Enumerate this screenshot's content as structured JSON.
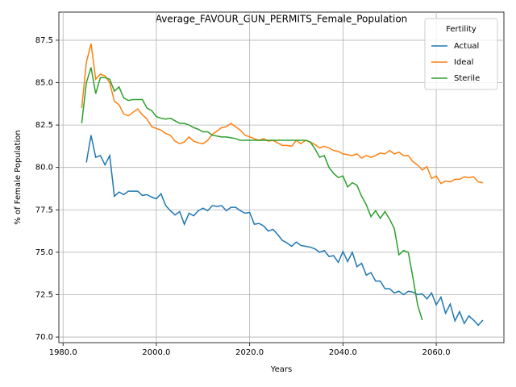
{
  "chart_data": {
    "type": "line",
    "title": "Average_FAVOUR_GUN_PERMITS_Female_Population",
    "x_label": "Years",
    "y_label": "% of Female Population",
    "legend_title": "Fertility",
    "legend_position": "upper right",
    "grid": true,
    "xlim": [
      1979.1,
      2074.5
    ],
    "ylim": [
      69.67,
      89.16
    ],
    "xticks": [
      {
        "value": 1980,
        "label": "1980.0"
      },
      {
        "value": 2000,
        "label": "2000.0"
      },
      {
        "value": 2020,
        "label": "2020.0"
      },
      {
        "value": 2040,
        "label": "2040.0"
      },
      {
        "value": 2060,
        "label": "2060.0"
      }
    ],
    "yticks": [
      {
        "value": 70,
        "label": "70.0"
      },
      72.5,
      {
        "value": 75,
        "label": "75.0"
      },
      77.5,
      {
        "value": 80,
        "label": "80.0"
      },
      82.5,
      {
        "value": 85,
        "label": "85.0"
      },
      87.5
    ],
    "x": [
      1984,
      1985,
      1986,
      1987,
      1988,
      1989,
      1990,
      1991,
      1992,
      1993,
      1994,
      1995,
      1996,
      1997,
      1998,
      1999,
      2000,
      2001,
      2002,
      2003,
      2004,
      2005,
      2006,
      2007,
      2008,
      2009,
      2010,
      2011,
      2012,
      2013,
      2014,
      2015,
      2016,
      2017,
      2018,
      2019,
      2020,
      2021,
      2022,
      2023,
      2024,
      2025,
      2026,
      2027,
      2028,
      2029,
      2030,
      2031,
      2032,
      2033,
      2034,
      2035,
      2036,
      2037,
      2038,
      2039,
      2040,
      2041,
      2042,
      2043,
      2044,
      2045,
      2046,
      2047,
      2048,
      2049,
      2050,
      2051,
      2052,
      2053,
      2054,
      2055,
      2056,
      2057,
      2058,
      2059,
      2060,
      2061,
      2062,
      2063,
      2064,
      2065,
      2066,
      2067,
      2068,
      2069,
      2070
    ],
    "series": [
      {
        "name": "Actual",
        "color": "#1f77b4",
        "values": [
          null,
          80.3,
          81.9,
          80.6,
          80.7,
          80.15,
          80.7,
          78.3,
          78.55,
          78.4,
          78.6,
          78.6,
          78.6,
          78.35,
          78.4,
          78.25,
          78.15,
          78.45,
          77.75,
          77.45,
          77.2,
          77.4,
          76.65,
          77.3,
          77.15,
          77.45,
          77.6,
          77.45,
          77.75,
          77.7,
          77.75,
          77.45,
          77.65,
          77.65,
          77.45,
          77.3,
          77.35,
          76.65,
          76.7,
          76.55,
          76.25,
          76.35,
          76.05,
          75.7,
          75.55,
          75.35,
          75.6,
          75.4,
          75.35,
          75.3,
          75.2,
          75.0,
          75.1,
          74.75,
          74.8,
          74.4,
          75.05,
          74.45,
          75.0,
          74.15,
          74.35,
          73.65,
          73.8,
          73.3,
          73.3,
          72.85,
          72.85,
          72.6,
          72.7,
          72.5,
          72.7,
          72.65,
          72.5,
          72.55,
          72.25,
          72.6,
          71.9,
          72.35,
          71.4,
          71.95,
          70.95,
          71.5,
          70.8,
          71.25,
          71.0,
          70.7,
          71.0
        ]
      },
      {
        "name": "Ideal",
        "color": "#ff7f0e",
        "values": [
          83.5,
          86.2,
          87.3,
          85.2,
          85.5,
          85.4,
          85.0,
          83.9,
          83.7,
          83.15,
          83.05,
          83.25,
          83.45,
          83.1,
          82.85,
          82.4,
          82.3,
          82.2,
          82.0,
          81.9,
          81.55,
          81.4,
          81.5,
          81.8,
          81.55,
          81.45,
          81.4,
          81.6,
          81.95,
          82.15,
          82.35,
          82.4,
          82.6,
          82.4,
          82.2,
          81.9,
          81.8,
          81.7,
          81.6,
          81.7,
          81.55,
          81.6,
          81.45,
          81.3,
          81.3,
          81.25,
          81.6,
          81.4,
          81.6,
          81.5,
          81.35,
          81.15,
          81.25,
          81.15,
          81.0,
          80.95,
          80.8,
          80.75,
          80.7,
          80.8,
          80.55,
          80.7,
          80.6,
          80.7,
          80.85,
          80.8,
          81.0,
          80.8,
          80.9,
          80.7,
          80.7,
          80.35,
          80.15,
          79.85,
          80.05,
          79.35,
          79.5,
          79.05,
          79.2,
          79.15,
          79.3,
          79.3,
          79.45,
          79.4,
          79.45,
          79.15,
          79.1
        ]
      },
      {
        "name": "Sterile",
        "color": "#2ca02c",
        "values": [
          82.6,
          85.0,
          85.9,
          84.35,
          85.3,
          85.3,
          85.2,
          84.5,
          84.75,
          84.1,
          83.95,
          84.0,
          84.0,
          84.0,
          83.5,
          83.35,
          83.0,
          82.9,
          82.85,
          82.9,
          82.75,
          82.6,
          82.6,
          82.5,
          82.35,
          82.25,
          82.1,
          82.1,
          81.9,
          81.85,
          81.8,
          81.8,
          81.75,
          81.7,
          81.6,
          81.6,
          81.6,
          81.6,
          81.6,
          81.6,
          81.6,
          81.6,
          81.6,
          81.6,
          81.6,
          81.6,
          81.6,
          81.6,
          81.6,
          81.5,
          81.1,
          80.6,
          80.7,
          80.0,
          79.65,
          79.4,
          79.5,
          78.85,
          79.1,
          78.95,
          78.3,
          77.8,
          77.1,
          77.45,
          77.0,
          77.4,
          76.95,
          76.4,
          74.85,
          75.1,
          75.0,
          73.5,
          71.9,
          71.0,
          null,
          null,
          null,
          null,
          null,
          null,
          null,
          null,
          null,
          null,
          null,
          null,
          null
        ]
      }
    ]
  }
}
